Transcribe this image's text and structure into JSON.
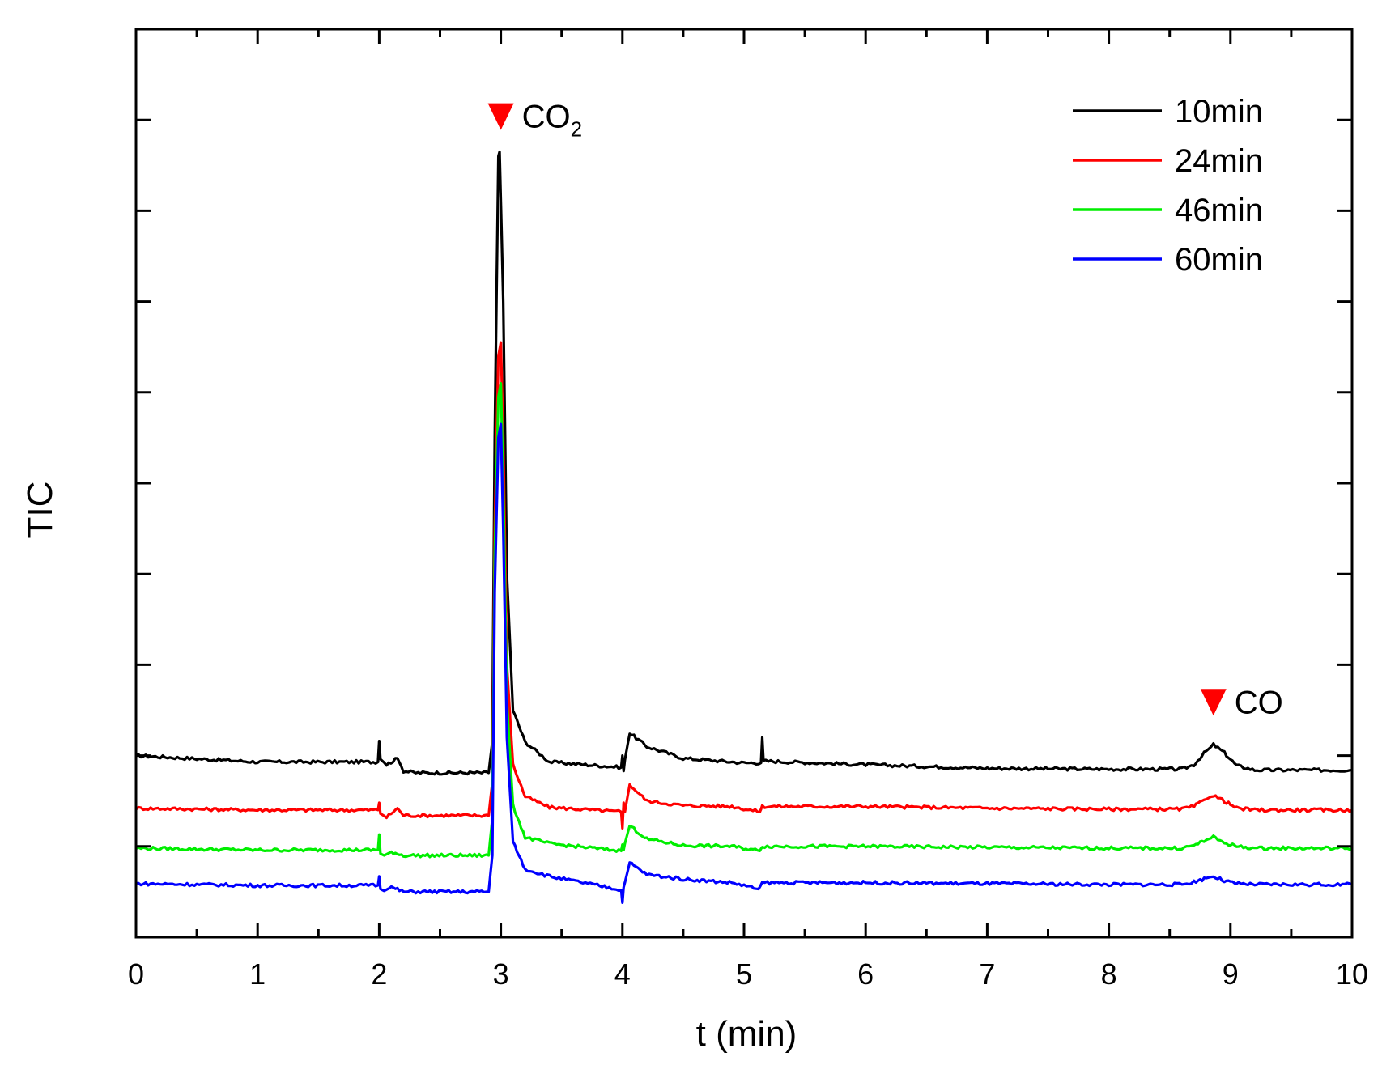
{
  "chart_data": {
    "type": "line",
    "xlabel": "t (min)",
    "ylabel": "TIC",
    "xlim": [
      0,
      10
    ],
    "ylim": [
      0,
      100
    ],
    "x_ticks": [
      "0",
      "1",
      "2",
      "3",
      "4",
      "5",
      "6",
      "7",
      "8",
      "9",
      "10"
    ],
    "y_tick_labels_shown": false,
    "grid": false,
    "legend_position": "top-right",
    "series": [
      {
        "name": "10min",
        "color": "#000000",
        "x": [
          0,
          1,
          1.99,
          2.0,
          2.01,
          2.06,
          2.15,
          2.2,
          2.3,
          2.9,
          2.93,
          2.95,
          2.98,
          2.99,
          3.02,
          3.05,
          3.1,
          3.2,
          3.4,
          3.99,
          4.0,
          4.01,
          4.02,
          4.06,
          4.2,
          4.5,
          5.0,
          5.14,
          5.15,
          5.16,
          6,
          7,
          8,
          8.6,
          8.7,
          8.8,
          8.86,
          8.95,
          9.05,
          9.2,
          10
        ],
        "y": [
          20.0,
          19.3,
          19.3,
          21.6,
          19.6,
          19.0,
          19.7,
          18.3,
          18.1,
          18.1,
          21.5,
          55.0,
          86.0,
          86.5,
          70.0,
          40.0,
          25.0,
          21.5,
          19.3,
          18.7,
          20.0,
          18.3,
          19.5,
          22.5,
          21.0,
          19.7,
          19.2,
          19.2,
          22.0,
          19.4,
          19.0,
          18.6,
          18.5,
          18.5,
          19.0,
          20.5,
          21.2,
          20.3,
          18.9,
          18.4,
          18.4
        ]
      },
      {
        "name": "24min",
        "color": "#ff0000",
        "x": [
          0,
          1,
          1.99,
          2.0,
          2.01,
          2.06,
          2.15,
          2.2,
          2.3,
          2.9,
          2.93,
          2.95,
          2.98,
          3.0,
          3.02,
          3.05,
          3.1,
          3.2,
          3.4,
          3.99,
          4.0,
          4.01,
          4.02,
          4.06,
          4.2,
          4.5,
          4.9,
          5.13,
          5.15,
          6,
          7,
          8,
          8.6,
          8.7,
          8.8,
          8.86,
          8.95,
          9.05,
          9.2,
          10
        ],
        "y": [
          14.2,
          14.0,
          14.0,
          14.8,
          13.6,
          13.2,
          14.2,
          13.4,
          13.4,
          13.4,
          17.0,
          45.0,
          64.0,
          65.5,
          55.0,
          30.0,
          19.0,
          15.5,
          14.3,
          13.8,
          12.0,
          14.8,
          13.8,
          16.8,
          15.0,
          14.5,
          14.4,
          13.8,
          14.4,
          14.4,
          14.2,
          14.1,
          14.1,
          14.4,
          15.2,
          15.6,
          15.0,
          14.2,
          14.0,
          14.0
        ]
      },
      {
        "name": "46min",
        "color": "#00ee00",
        "x": [
          0,
          1,
          1.99,
          2.0,
          2.01,
          2.04,
          2.1,
          2.2,
          2.3,
          2.9,
          2.93,
          2.95,
          2.98,
          3.0,
          3.02,
          3.05,
          3.1,
          3.2,
          3.4,
          3.99,
          4.0,
          4.01,
          4.02,
          4.06,
          4.2,
          4.5,
          4.9,
          5.13,
          5.15,
          6,
          7,
          8,
          8.6,
          8.7,
          8.8,
          8.86,
          8.95,
          9.05,
          9.2,
          10
        ],
        "y": [
          9.8,
          9.6,
          9.6,
          11.3,
          9.2,
          9.0,
          9.4,
          9.0,
          9.0,
          9.0,
          13.0,
          42.0,
          59.5,
          61.0,
          50.0,
          26.0,
          14.5,
          11.0,
          10.3,
          9.5,
          10.2,
          9.6,
          10.3,
          12.3,
          10.8,
          10.1,
          10.0,
          9.5,
          10.0,
          10.0,
          9.9,
          9.8,
          9.8,
          10.1,
          10.7,
          11.0,
          10.4,
          10.0,
          9.8,
          9.8
        ]
      },
      {
        "name": "60min",
        "color": "#0000ff",
        "x": [
          0,
          1,
          1.99,
          2.0,
          2.01,
          2.04,
          2.1,
          2.2,
          2.3,
          2.9,
          2.93,
          2.95,
          2.98,
          3.0,
          3.02,
          3.05,
          3.1,
          3.2,
          3.4,
          3.99,
          4.0,
          4.01,
          4.02,
          4.06,
          4.2,
          4.5,
          4.9,
          5.12,
          5.15,
          6,
          7,
          8,
          8.6,
          8.7,
          8.8,
          8.86,
          8.95,
          9.05,
          9.2,
          10
        ],
        "y": [
          5.9,
          5.7,
          5.7,
          6.7,
          5.3,
          5.1,
          5.5,
          5.0,
          5.0,
          5.0,
          9.0,
          38.0,
          55.0,
          56.5,
          45.0,
          22.0,
          10.5,
          7.5,
          6.7,
          5.2,
          3.8,
          5.5,
          6.0,
          8.2,
          6.9,
          6.4,
          6.0,
          5.3,
          6.0,
          6.0,
          5.9,
          5.8,
          5.8,
          6.1,
          6.5,
          6.7,
          6.2,
          5.9,
          5.8,
          5.8
        ]
      }
    ],
    "annotations": [
      {
        "label": "CO",
        "subscript": "2",
        "x": 3.0,
        "y": 90.5,
        "marker_color": "#ff0000"
      },
      {
        "label": "CO",
        "subscript": "",
        "x": 8.86,
        "y": 26.0,
        "marker_color": "#ff0000"
      }
    ]
  }
}
